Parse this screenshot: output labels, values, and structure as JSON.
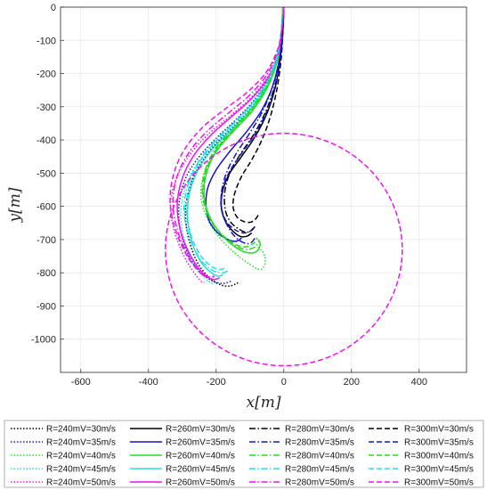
{
  "chart_data": {
    "type": "line",
    "title": "",
    "xlabel": "x[m]",
    "ylabel": "y[m]",
    "xlim": [
      -660,
      540
    ],
    "ylim": [
      -1100,
      0
    ],
    "xticks": [
      -600,
      -400,
      -200,
      0,
      200,
      400
    ],
    "yticks": [
      0,
      -100,
      -200,
      -300,
      -400,
      -500,
      -600,
      -700,
      -800,
      -900,
      -1000
    ],
    "grid": true,
    "legend_position": "bottom",
    "legend_columns": 4,
    "colors": {
      "30": "#000000",
      "35": "#1515c8",
      "40": "#22dd22",
      "45": "#22e0e0",
      "50": "#ee11ee"
    },
    "series": [
      {
        "name": "R=240mV=30m/s",
        "style": "dotted",
        "color": "#000000",
        "x": [
          0,
          -5,
          -15,
          -40,
          -80,
          -130,
          -185,
          -235,
          -270,
          -290,
          -285,
          -260,
          -225,
          -190,
          -160,
          -135
        ],
        "y": [
          0,
          -60,
          -130,
          -210,
          -280,
          -340,
          -395,
          -455,
          -520,
          -600,
          -680,
          -760,
          -810,
          -835,
          -840,
          -830
        ]
      },
      {
        "name": "R=240mV=35m/s",
        "style": "dotted",
        "color": "#1515c8",
        "x": [
          0,
          -5,
          -15,
          -42,
          -85,
          -138,
          -195,
          -250,
          -290,
          -310,
          -305,
          -280,
          -245,
          -210,
          -180,
          -155
        ],
        "y": [
          0,
          -60,
          -130,
          -208,
          -276,
          -335,
          -390,
          -450,
          -515,
          -595,
          -675,
          -750,
          -800,
          -825,
          -832,
          -825
        ]
      },
      {
        "name": "R=240mV=40m/s",
        "style": "dotted",
        "color": "#22dd22",
        "x": [
          -3,
          -8,
          -20,
          -50,
          -95,
          -150,
          -200,
          -235,
          -245,
          -225,
          -185,
          -140,
          -100,
          -70,
          -55,
          -60,
          -80
        ],
        "y": [
          0,
          -80,
          -160,
          -240,
          -310,
          -370,
          -430,
          -500,
          -570,
          -640,
          -700,
          -745,
          -775,
          -790,
          -770,
          -740,
          -720
        ]
      },
      {
        "name": "R=240mV=45m/s",
        "style": "dotted",
        "color": "#22e0e0",
        "x": [
          -2,
          -7,
          -18,
          -46,
          -92,
          -148,
          -205,
          -255,
          -290,
          -305,
          -295,
          -270,
          -240,
          -215,
          -200
        ],
        "y": [
          0,
          -70,
          -145,
          -225,
          -295,
          -355,
          -410,
          -470,
          -540,
          -620,
          -700,
          -770,
          -810,
          -830,
          -830
        ]
      },
      {
        "name": "R=240mV=50m/s",
        "style": "dotted",
        "color": "#ee11ee",
        "x": [
          0,
          -5,
          -15,
          -45,
          -95,
          -155,
          -220,
          -275,
          -315,
          -335,
          -325,
          -295,
          -265,
          -245,
          -235
        ],
        "y": [
          0,
          -60,
          -130,
          -205,
          -270,
          -325,
          -380,
          -440,
          -510,
          -590,
          -670,
          -750,
          -800,
          -825,
          -830
        ]
      },
      {
        "name": "R=260mV=30m/s",
        "style": "solid",
        "color": "#000000",
        "x": [
          0,
          -3,
          -10,
          -25,
          -50,
          -85,
          -125,
          -160,
          -180,
          -185,
          -175,
          -155,
          -130,
          -110,
          -95
        ],
        "y": [
          0,
          -70,
          -150,
          -240,
          -320,
          -390,
          -450,
          -500,
          -550,
          -600,
          -640,
          -670,
          -690,
          -690,
          -680
        ]
      },
      {
        "name": "R=260mV=35m/s",
        "style": "solid",
        "color": "#1515c8",
        "x": [
          0,
          -4,
          -12,
          -32,
          -65,
          -110,
          -160,
          -200,
          -225,
          -230,
          -220,
          -195,
          -165,
          -140,
          -125
        ],
        "y": [
          0,
          -70,
          -150,
          -235,
          -310,
          -375,
          -435,
          -490,
          -545,
          -600,
          -645,
          -680,
          -700,
          -705,
          -695
        ]
      },
      {
        "name": "R=260mV=40m/s",
        "style": "solid",
        "color": "#22dd22",
        "x": [
          -3,
          -8,
          -20,
          -50,
          -95,
          -150,
          -200,
          -230,
          -235,
          -215,
          -180,
          -140,
          -105,
          -80,
          -70,
          -75
        ],
        "y": [
          0,
          -80,
          -165,
          -245,
          -315,
          -375,
          -435,
          -505,
          -575,
          -640,
          -690,
          -725,
          -740,
          -735,
          -715,
          -700
        ]
      },
      {
        "name": "R=260mV=45m/s",
        "style": "solid",
        "color": "#22e0e0",
        "x": [
          -2,
          -7,
          -18,
          -46,
          -90,
          -145,
          -200,
          -245,
          -275,
          -285,
          -275,
          -250,
          -220,
          -195,
          -180
        ],
        "y": [
          0,
          -75,
          -150,
          -230,
          -300,
          -360,
          -415,
          -475,
          -545,
          -620,
          -695,
          -760,
          -795,
          -810,
          -805
        ]
      },
      {
        "name": "R=260mV=50m/s",
        "style": "solid",
        "color": "#ee11ee",
        "x": [
          0,
          -5,
          -15,
          -45,
          -95,
          -155,
          -215,
          -265,
          -300,
          -315,
          -305,
          -275,
          -240,
          -210,
          -190
        ],
        "y": [
          0,
          -65,
          -135,
          -210,
          -275,
          -330,
          -385,
          -445,
          -515,
          -595,
          -675,
          -750,
          -800,
          -820,
          -815
        ]
      },
      {
        "name": "R=280mV=30m/s",
        "style": "dashdot",
        "color": "#000000",
        "x": [
          0,
          -3,
          -10,
          -27,
          -55,
          -90,
          -130,
          -160,
          -175,
          -172,
          -155,
          -130,
          -110,
          -95,
          -85
        ],
        "y": [
          0,
          -70,
          -150,
          -238,
          -318,
          -385,
          -445,
          -500,
          -560,
          -615,
          -650,
          -670,
          -678,
          -672,
          -660
        ]
      },
      {
        "name": "R=280mV=35m/s",
        "style": "dashdot",
        "color": "#1515c8",
        "x": [
          0,
          -4,
          -12,
          -32,
          -62,
          -100,
          -140,
          -170,
          -185,
          -180,
          -160,
          -135,
          -110,
          -95,
          -85
        ],
        "y": [
          0,
          -70,
          -150,
          -235,
          -312,
          -378,
          -440,
          -500,
          -565,
          -625,
          -670,
          -700,
          -712,
          -708,
          -695
        ]
      },
      {
        "name": "R=280mV=40m/s",
        "style": "dashdot",
        "color": "#22dd22",
        "x": [
          -3,
          -8,
          -22,
          -55,
          -100,
          -155,
          -205,
          -235,
          -240,
          -220,
          -185,
          -145,
          -110,
          -85,
          -72
        ],
        "y": [
          0,
          -75,
          -160,
          -240,
          -310,
          -372,
          -430,
          -500,
          -570,
          -635,
          -685,
          -718,
          -730,
          -722,
          -705
        ]
      },
      {
        "name": "R=280mV=45m/s",
        "style": "dashdot",
        "color": "#22e0e0",
        "x": [
          -2,
          -7,
          -20,
          -50,
          -98,
          -155,
          -210,
          -255,
          -285,
          -295,
          -280,
          -250,
          -215,
          -185,
          -165
        ],
        "y": [
          0,
          -70,
          -148,
          -226,
          -296,
          -355,
          -410,
          -470,
          -540,
          -615,
          -690,
          -755,
          -790,
          -800,
          -795
        ]
      },
      {
        "name": "R=280mV=50m/s",
        "style": "dashdot",
        "color": "#ee11ee",
        "x": [
          0,
          -5,
          -17,
          -50,
          -102,
          -165,
          -228,
          -280,
          -315,
          -328,
          -315,
          -285,
          -250,
          -222,
          -205
        ],
        "y": [
          0,
          -62,
          -130,
          -203,
          -266,
          -320,
          -375,
          -437,
          -508,
          -588,
          -670,
          -745,
          -795,
          -815,
          -810
        ]
      },
      {
        "name": "R=300mV=30m/s",
        "style": "dashed",
        "color": "#000000",
        "x": [
          0,
          -3,
          -8,
          -20,
          -40,
          -65,
          -95,
          -125,
          -145,
          -150,
          -140,
          -120,
          -100,
          -85,
          -75
        ],
        "y": [
          0,
          -70,
          -155,
          -245,
          -330,
          -400,
          -460,
          -510,
          -560,
          -600,
          -630,
          -645,
          -648,
          -640,
          -625
        ]
      },
      {
        "name": "R=300mV=35m/s",
        "style": "dashed",
        "color": "#1515c8",
        "x": [
          0,
          -3,
          -10,
          -26,
          -52,
          -88,
          -128,
          -163,
          -183,
          -185,
          -170,
          -145,
          -120,
          -100,
          -88
        ],
        "y": [
          0,
          -70,
          -152,
          -238,
          -318,
          -386,
          -445,
          -500,
          -555,
          -605,
          -645,
          -670,
          -680,
          -675,
          -662
        ]
      },
      {
        "name": "R=300mV=40m/s",
        "style": "dashed",
        "color": "#22dd22",
        "x": [
          -3,
          -8,
          -22,
          -52,
          -98,
          -152,
          -202,
          -232,
          -238,
          -220,
          -185,
          -148,
          -115,
          -90,
          -78
        ],
        "y": [
          0,
          -78,
          -162,
          -242,
          -312,
          -373,
          -432,
          -502,
          -572,
          -635,
          -682,
          -712,
          -722,
          -712,
          -695
        ]
      },
      {
        "name": "R=300mV=45m/s",
        "style": "dashed",
        "color": "#22e0e0",
        "x": [
          -2,
          -7,
          -20,
          -50,
          -97,
          -153,
          -208,
          -252,
          -280,
          -288,
          -275,
          -248,
          -215,
          -188,
          -170
        ],
        "y": [
          0,
          -70,
          -148,
          -226,
          -296,
          -356,
          -412,
          -472,
          -542,
          -615,
          -685,
          -745,
          -780,
          -790,
          -782
        ]
      },
      {
        "name": "R=300mV=50m/s",
        "style": "dashed",
        "color": "#ee11ee",
        "x": [
          0,
          -5,
          -18,
          -52,
          -108,
          -175,
          -240,
          -292,
          -325,
          -336,
          -322,
          -290,
          -255,
          -228,
          -210
        ],
        "y": [
          0,
          -60,
          -126,
          -196,
          -256,
          -308,
          -362,
          -426,
          -500,
          -582,
          -665,
          -742,
          -792,
          -812,
          -808
        ]
      }
    ],
    "circle": {
      "name": "",
      "style": "dashed",
      "color": "#ee11ee",
      "center_x": 0,
      "center_y": -730,
      "radius": 350
    }
  }
}
